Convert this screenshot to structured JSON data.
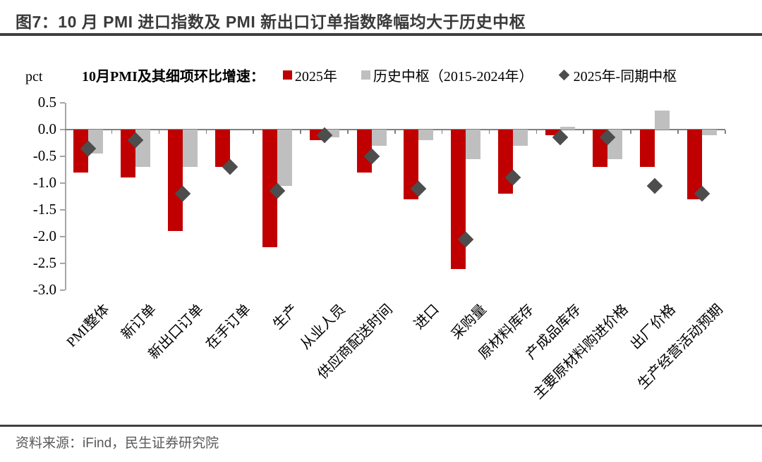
{
  "figure": {
    "title": "图7：10 月 PMI 进口指数及 PMI 新出口订单指数降幅均大于历史中枢",
    "source": "资料来源：iFind，民生证券研究院"
  },
  "chart_data": {
    "type": "bar",
    "title": "10月PMI及其细项环比增速：",
    "unit_label": "pct",
    "categories": [
      "PMI整体",
      "新订单",
      "新出口订单",
      "在手订单",
      "生产",
      "从业人员",
      "供应商配送时间",
      "进口",
      "采购量",
      "原材料库存",
      "产成品库存",
      "主要原材料购进价格",
      "出厂价格",
      "生产经营活动预期"
    ],
    "series": [
      {
        "name": "2025年",
        "type": "bar",
        "color": "#c00000",
        "values": [
          -0.8,
          -0.9,
          -1.9,
          -0.7,
          -2.2,
          -0.2,
          -0.8,
          -1.3,
          -2.6,
          -1.2,
          -0.1,
          -0.7,
          -0.7,
          -1.3
        ]
      },
      {
        "name": "历史中枢（2015-2024年）",
        "type": "bar",
        "color": "#bfbfbf",
        "values": [
          -0.45,
          -0.7,
          -0.7,
          0.0,
          -1.05,
          -0.15,
          -0.3,
          -0.2,
          -0.55,
          -0.3,
          0.05,
          -0.55,
          0.35,
          -0.1
        ]
      },
      {
        "name": "2025年-同期中枢",
        "type": "scatter-diamond",
        "color": "#4d4d4d",
        "values": [
          -0.35,
          -0.2,
          -1.2,
          -0.7,
          -1.15,
          -0.1,
          -0.5,
          -1.1,
          -2.05,
          -0.9,
          -0.15,
          -0.15,
          -1.05,
          -1.2
        ]
      }
    ],
    "ylim": [
      -3.0,
      0.5
    ],
    "ytick_step": 0.5,
    "grid": false,
    "legend_position": "top",
    "axis_color": "#a6a6a6",
    "zero_line_color": "#808080"
  }
}
